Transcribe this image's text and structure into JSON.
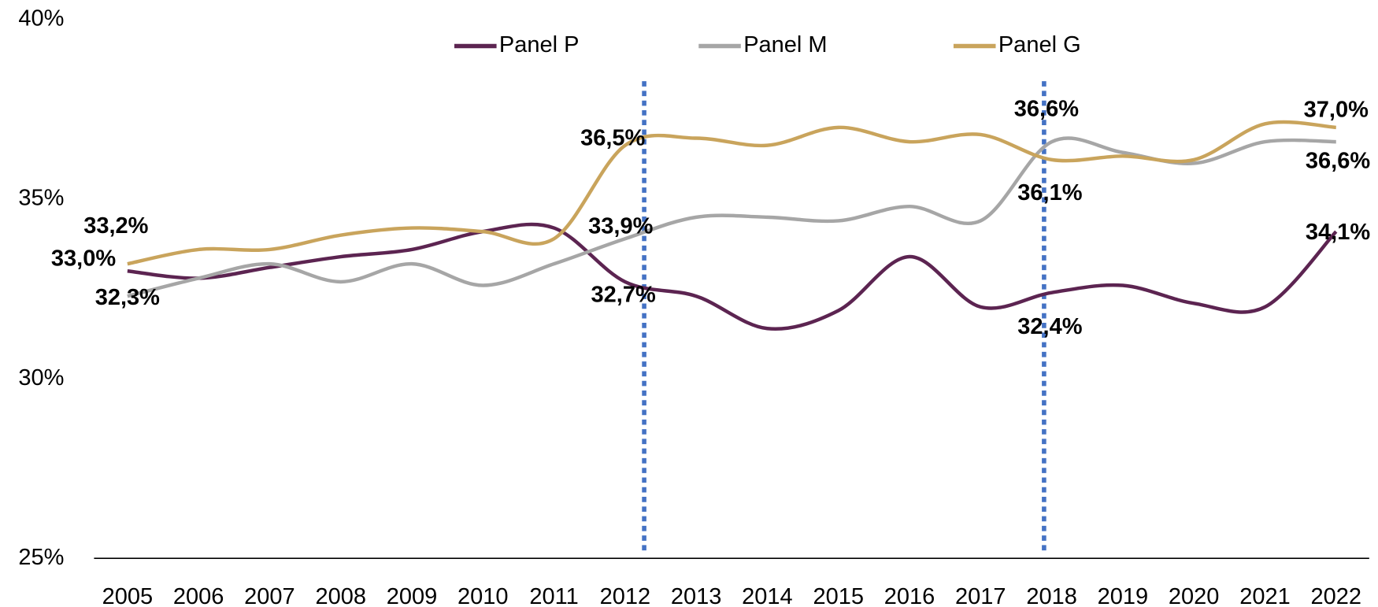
{
  "chart_data": {
    "type": "line",
    "categories": [
      "2005",
      "2006",
      "2007",
      "2008",
      "2009",
      "2010",
      "2011",
      "2012",
      "2013",
      "2014",
      "2015",
      "2016",
      "2017",
      "2018",
      "2019",
      "2020",
      "2021",
      "2022"
    ],
    "ylim": [
      25,
      40
    ],
    "yticks": [
      {
        "value": 25,
        "label": "25%"
      },
      {
        "value": 30,
        "label": "30%"
      },
      {
        "value": 35,
        "label": "35%"
      },
      {
        "value": 40,
        "label": "40%"
      }
    ],
    "grid": false,
    "legend": "top",
    "series": [
      {
        "name": "Panel P",
        "color": "#5c2451",
        "values": [
          33.0,
          32.8,
          33.1,
          33.4,
          33.6,
          34.1,
          34.2,
          32.7,
          32.3,
          31.4,
          31.9,
          33.4,
          32.0,
          32.4,
          32.6,
          32.1,
          32.0,
          34.1
        ],
        "value_labels": [
          "33,0%",
          null,
          null,
          null,
          null,
          null,
          null,
          "32,7%",
          null,
          null,
          null,
          null,
          null,
          "32,4%",
          null,
          null,
          null,
          "34,1%"
        ]
      },
      {
        "name": "Panel M",
        "color": "#a6a6a6",
        "values": [
          32.3,
          32.8,
          33.2,
          32.7,
          33.2,
          32.6,
          33.2,
          33.9,
          34.5,
          34.5,
          34.4,
          34.8,
          34.4,
          36.6,
          36.3,
          36.0,
          36.6,
          36.6
        ],
        "value_labels": [
          "32,3%",
          null,
          null,
          null,
          null,
          null,
          null,
          "33,9%",
          null,
          null,
          null,
          null,
          null,
          "36,6%",
          null,
          null,
          null,
          "36,6%"
        ]
      },
      {
        "name": "Panel G",
        "color": "#c9a45c",
        "values": [
          33.2,
          33.6,
          33.6,
          34.0,
          34.2,
          34.1,
          33.9,
          36.5,
          36.7,
          36.5,
          37.0,
          36.6,
          36.8,
          36.1,
          36.2,
          36.1,
          37.1,
          37.0
        ],
        "value_labels": [
          "33,2%",
          null,
          null,
          null,
          null,
          null,
          null,
          "36,5%",
          null,
          null,
          null,
          null,
          null,
          "36,1%",
          null,
          null,
          null,
          "37,0%"
        ]
      }
    ]
  }
}
